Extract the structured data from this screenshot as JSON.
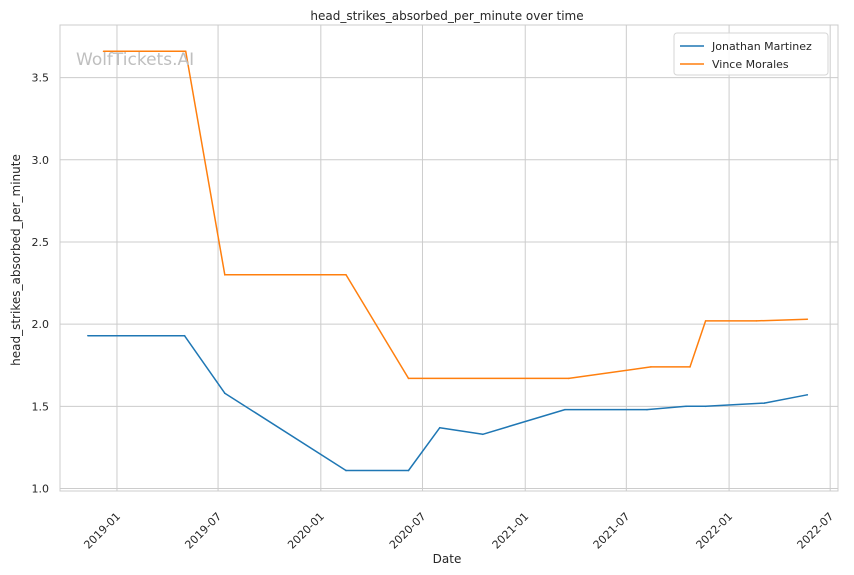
{
  "chart_data": {
    "type": "line",
    "title": "head_strikes_absorbed_per_minute over time",
    "xlabel": "Date",
    "ylabel": "head_strikes_absorbed_per_minute",
    "watermark": "WolfTickets.AI",
    "xlim": [
      "2018-09-21",
      "2022-07-15"
    ],
    "ylim": [
      0.985,
      3.82
    ],
    "x_ticks": [
      {
        "date": "2019-01-01",
        "label": "2019-01"
      },
      {
        "date": "2019-07-01",
        "label": "2019-07"
      },
      {
        "date": "2020-01-01",
        "label": "2020-01"
      },
      {
        "date": "2020-07-01",
        "label": "2020-07"
      },
      {
        "date": "2021-01-01",
        "label": "2021-01"
      },
      {
        "date": "2021-07-01",
        "label": "2021-07"
      },
      {
        "date": "2022-01-01",
        "label": "2022-01"
      },
      {
        "date": "2022-07-01",
        "label": "2022-07"
      }
    ],
    "y_ticks": [
      {
        "value": 1.0,
        "label": "1.0"
      },
      {
        "value": 1.5,
        "label": "1.5"
      },
      {
        "value": 2.0,
        "label": "2.0"
      },
      {
        "value": 2.5,
        "label": "2.5"
      },
      {
        "value": 3.0,
        "label": "3.0"
      },
      {
        "value": 3.5,
        "label": "3.5"
      }
    ],
    "grid": true,
    "legend_position": "top-right",
    "series": [
      {
        "name": "Jonathan Martinez",
        "color": "#1f77b4",
        "points": [
          {
            "x": "2018-11-10",
            "y": 1.93
          },
          {
            "x": "2019-05-02",
            "y": 1.93
          },
          {
            "x": "2019-07-13",
            "y": 1.58
          },
          {
            "x": "2020-02-15",
            "y": 1.11
          },
          {
            "x": "2020-06-06",
            "y": 1.11
          },
          {
            "x": "2020-08-01",
            "y": 1.37
          },
          {
            "x": "2020-10-17",
            "y": 1.33
          },
          {
            "x": "2021-03-13",
            "y": 1.48
          },
          {
            "x": "2021-08-07",
            "y": 1.48
          },
          {
            "x": "2021-10-16",
            "y": 1.5
          },
          {
            "x": "2021-11-20",
            "y": 1.5
          },
          {
            "x": "2022-03-05",
            "y": 1.52
          },
          {
            "x": "2022-05-21",
            "y": 1.57
          }
        ]
      },
      {
        "name": "Vince Morales",
        "color": "#ff7f0e",
        "points": [
          {
            "x": "2018-12-08",
            "y": 3.66
          },
          {
            "x": "2019-05-04",
            "y": 3.66
          },
          {
            "x": "2019-07-13",
            "y": 2.3
          },
          {
            "x": "2020-02-15",
            "y": 2.3
          },
          {
            "x": "2020-06-06",
            "y": 1.67
          },
          {
            "x": "2021-03-20",
            "y": 1.67
          },
          {
            "x": "2021-08-14",
            "y": 1.74
          },
          {
            "x": "2021-10-23",
            "y": 1.74
          },
          {
            "x": "2021-11-20",
            "y": 2.02
          },
          {
            "x": "2022-02-19",
            "y": 2.02
          },
          {
            "x": "2022-05-21",
            "y": 2.03
          }
        ]
      }
    ]
  }
}
